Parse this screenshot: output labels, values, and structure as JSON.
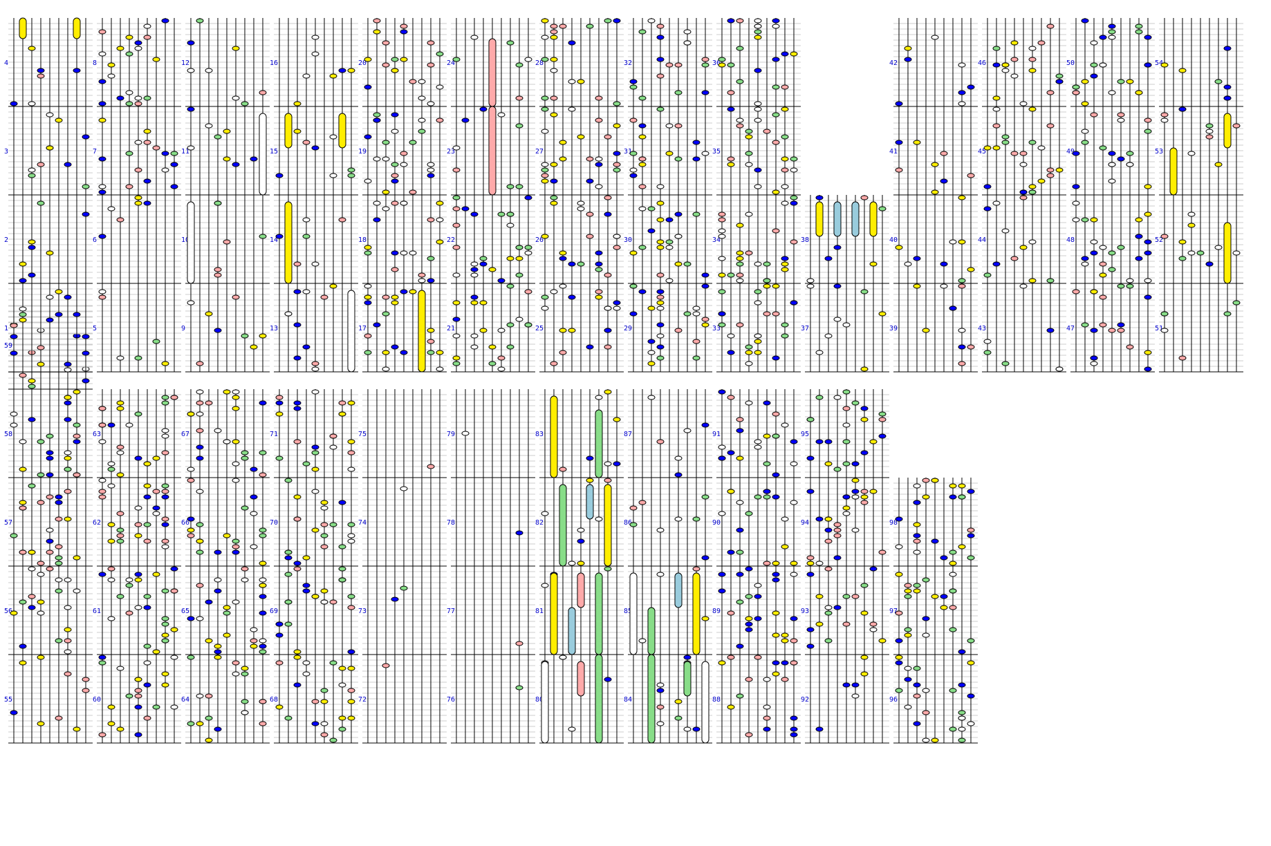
{
  "measure_labels": [
    "1",
    "2",
    "3",
    "4",
    "5",
    "6",
    "7",
    "8",
    "9",
    "10",
    "11",
    "12",
    "13",
    "14",
    "15",
    "16",
    "17",
    "18",
    "19",
    "20",
    "21",
    "22",
    "23",
    "24",
    "25",
    "26",
    "27",
    "28",
    "29",
    "30",
    "31",
    "32",
    "33",
    "34",
    "35",
    "36",
    "37",
    "38",
    "39",
    "40",
    "41",
    "42",
    "43",
    "44",
    "45",
    "46",
    "47",
    "48",
    "49",
    "50",
    "51",
    "52",
    "53",
    "54",
    "55",
    "56",
    "57",
    "58",
    "59",
    "60",
    "61",
    "62",
    "63",
    "64",
    "65",
    "66",
    "67",
    "68",
    "69",
    "70",
    "71",
    "72",
    "73",
    "74",
    "75",
    "76",
    "77",
    "78",
    "79",
    "80",
    "81",
    "82",
    "83",
    "84",
    "85",
    "86",
    "87",
    "88",
    "89",
    "90",
    "91",
    "92",
    "93",
    "94",
    "95",
    "96",
    "97",
    "98"
  ],
  "note_colors": {
    "white": "#ffffff",
    "yellow": "#ffee00",
    "blue": "#0000ff",
    "pink": "#ffaaaa",
    "green": "#88dd88",
    "light-blue": "#99ccdd"
  },
  "line_colors": {
    "lane": "#000000",
    "grid": "#cccccc",
    "label": "#0000cc"
  },
  "columns_per_measure": 9
}
